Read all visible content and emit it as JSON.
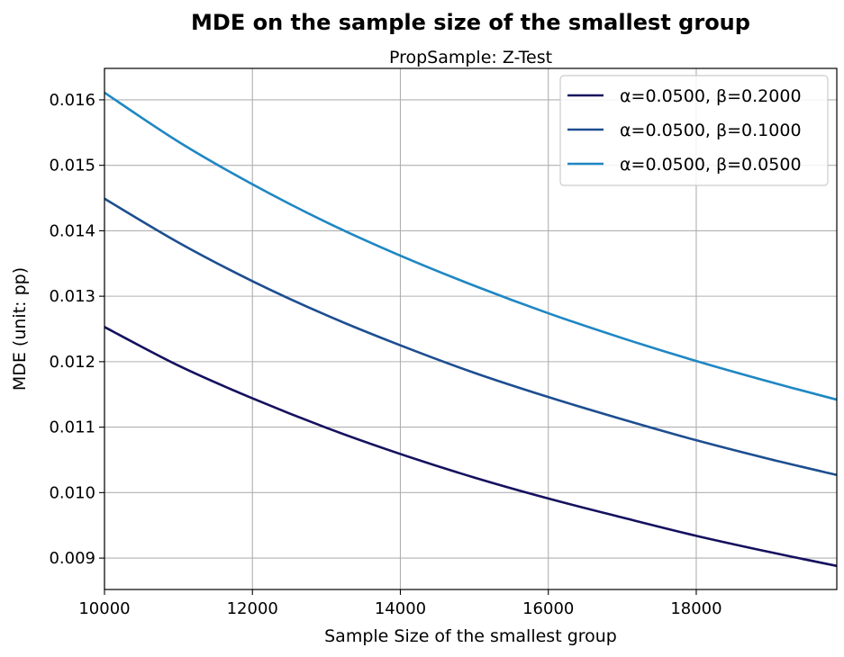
{
  "chart_data": {
    "type": "line",
    "title": "MDE on the sample size of the smallest group",
    "subtitle": "PropSample: Z-Test",
    "xlabel": "Sample Size of the smallest group",
    "ylabel": "MDE (unit: pp)",
    "xlim": [
      10000,
      19900
    ],
    "ylim": [
      0.00852,
      0.01648
    ],
    "xticks": [
      10000,
      12000,
      14000,
      16000,
      18000
    ],
    "xtick_labels": [
      "10000",
      "12000",
      "14000",
      "16000",
      "18000"
    ],
    "yticks": [
      0.009,
      0.01,
      0.011,
      0.012,
      0.013,
      0.014,
      0.015,
      0.016
    ],
    "ytick_labels": [
      "0.009",
      "0.010",
      "0.011",
      "0.012",
      "0.013",
      "0.014",
      "0.015",
      "0.016"
    ],
    "grid": true,
    "legend_position": "top-right",
    "x": [
      10000,
      11000,
      12000,
      13000,
      14000,
      15000,
      16000,
      17000,
      18000,
      19000,
      19900
    ],
    "series": [
      {
        "name": "α=0.0500, β=0.2000",
        "color": "#15105e",
        "values": [
          0.01253,
          0.01194,
          0.01144,
          0.01099,
          0.01059,
          0.01023,
          0.00991,
          0.00962,
          0.00934,
          0.00909,
          0.00888
        ]
      },
      {
        "name": "α=0.0500, β=0.1000",
        "color": "#1d4e91",
        "values": [
          0.01449,
          0.01382,
          0.01323,
          0.01271,
          0.01225,
          0.01183,
          0.01146,
          0.01112,
          0.0108,
          0.01051,
          0.01027
        ]
      },
      {
        "name": "α=0.0500, β=0.0500",
        "color": "#1f87c3",
        "values": [
          0.01611,
          0.01536,
          0.01471,
          0.01413,
          0.01362,
          0.01316,
          0.01274,
          0.01236,
          0.01201,
          0.01169,
          0.01142
        ]
      }
    ]
  }
}
